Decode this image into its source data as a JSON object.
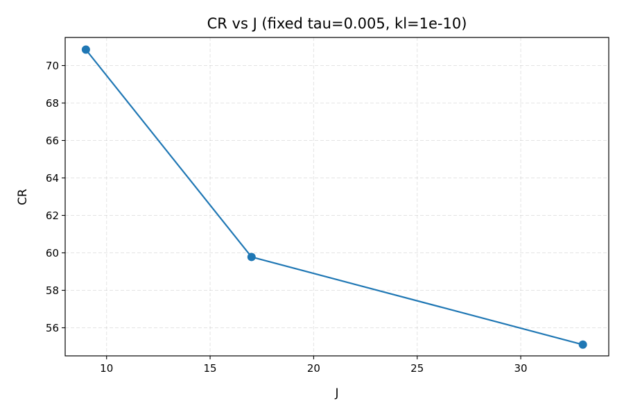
{
  "chart_data": {
    "type": "line",
    "title": "CR vs J (fixed tau=0.005, kl=1e-10)",
    "xlabel": "J",
    "ylabel": "CR",
    "xlim": [
      8,
      34.25
    ],
    "ylim": [
      54.5,
      71.5
    ],
    "xticks": [
      10,
      15,
      20,
      25,
      30
    ],
    "yticks": [
      56,
      58,
      60,
      62,
      64,
      66,
      68,
      70
    ],
    "xtick_labels": [
      "10",
      "15",
      "20",
      "25",
      "30"
    ],
    "ytick_labels": [
      "56",
      "58",
      "60",
      "62",
      "64",
      "66",
      "68",
      "70"
    ],
    "grid": true,
    "legend": "none",
    "series": [
      {
        "x": [
          9,
          17,
          33
        ],
        "y": [
          70.85,
          59.78,
          55.1
        ],
        "color": "#1f77b4",
        "marker": "circle"
      }
    ]
  }
}
